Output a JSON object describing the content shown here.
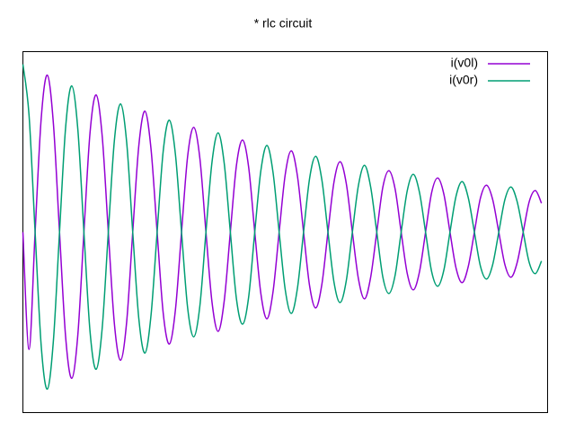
{
  "chart_data": {
    "type": "line",
    "title": "* rlc circuit",
    "x": [
      0,
      1,
      2,
      3,
      4,
      5,
      6,
      7,
      8,
      9,
      10,
      11,
      12,
      13,
      14,
      15,
      16,
      17,
      18,
      19,
      20,
      21,
      22,
      23,
      24,
      25,
      26,
      27,
      28,
      29,
      30,
      31,
      32,
      33,
      34,
      35,
      36,
      37,
      38,
      39,
      40,
      41,
      42,
      43,
      44,
      45,
      46,
      47,
      48,
      49,
      50,
      51,
      52,
      53,
      54,
      55,
      56,
      57,
      58,
      59,
      60,
      61,
      62,
      63,
      64,
      65,
      66,
      67,
      68,
      69,
      70,
      71,
      72,
      73,
      74,
      75,
      76,
      77,
      78,
      79,
      80,
      81,
      82,
      83,
      84,
      85
    ],
    "xlim": [
      0,
      86
    ],
    "ylim": [
      -1,
      1
    ],
    "legend": "top-right",
    "series": [
      {
        "name": "i(v0l)",
        "color": "#9400d3",
        "values": [
          0,
          -0.65,
          0,
          0.63,
          0.87,
          0.6,
          0,
          -0.58,
          -0.81,
          -0.57,
          0,
          0.55,
          0.76,
          0.53,
          0,
          -0.51,
          -0.71,
          -0.5,
          0,
          0.48,
          0.67,
          0.46,
          0,
          -0.45,
          -0.62,
          -0.43,
          0,
          0.42,
          0.58,
          0.41,
          0,
          -0.39,
          -0.55,
          -0.38,
          0,
          0.37,
          0.51,
          0.36,
          0,
          -0.34,
          -0.48,
          -0.33,
          0,
          0.32,
          0.45,
          0.31,
          0,
          -0.3,
          -0.42,
          -0.29,
          0,
          0.28,
          0.39,
          0.27,
          0,
          -0.26,
          -0.37,
          -0.25,
          0,
          0.25,
          0.34,
          0.24,
          0,
          -0.23,
          -0.32,
          -0.22,
          0,
          0.22,
          0.3,
          0.21,
          0,
          -0.2,
          -0.28,
          -0.19,
          0,
          0.19,
          0.26,
          0.18,
          0,
          -0.18,
          -0.25,
          -0.17,
          0,
          0.17,
          0.23,
          0.16
        ]
      },
      {
        "name": "i(v0r)",
        "color": "#009e73",
        "values": [
          0.93,
          0.65,
          0,
          -0.63,
          -0.87,
          -0.6,
          0,
          0.58,
          0.81,
          0.57,
          0,
          -0.55,
          -0.76,
          -0.53,
          0,
          0.51,
          0.71,
          0.5,
          0,
          -0.48,
          -0.67,
          -0.46,
          0,
          0.45,
          0.62,
          0.43,
          0,
          -0.42,
          -0.58,
          -0.41,
          0,
          0.39,
          0.55,
          0.38,
          0,
          -0.37,
          -0.51,
          -0.36,
          0,
          0.34,
          0.48,
          0.33,
          0,
          -0.32,
          -0.45,
          -0.31,
          0,
          0.3,
          0.42,
          0.29,
          0,
          -0.28,
          -0.39,
          -0.27,
          0,
          0.26,
          0.37,
          0.25,
          0,
          -0.25,
          -0.34,
          -0.24,
          0,
          0.23,
          0.32,
          0.22,
          0,
          -0.22,
          -0.3,
          -0.21,
          0,
          0.2,
          0.28,
          0.19,
          0,
          -0.19,
          -0.26,
          -0.18,
          0,
          0.18,
          0.25,
          0.17,
          0,
          -0.17,
          -0.23,
          -0.16
        ]
      }
    ]
  }
}
